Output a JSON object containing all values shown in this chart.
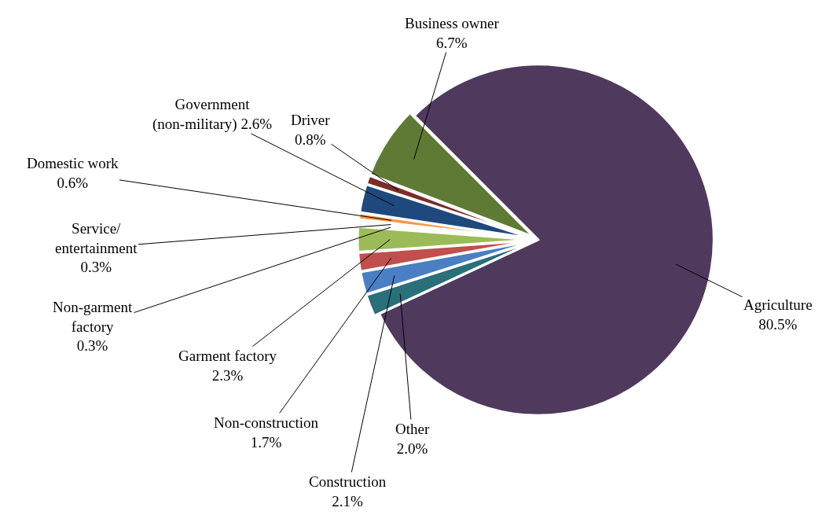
{
  "chart_data": {
    "type": "pie",
    "categories": [
      "Agriculture",
      "Other",
      "Construction",
      "Non-construction",
      "Garment factory",
      "Non-garment factory",
      "Service/ entertainment",
      "Domestic work",
      "Government (non-military)",
      "Driver",
      "Business owner"
    ],
    "values": [
      80.5,
      2.0,
      2.1,
      1.7,
      2.3,
      0.3,
      0.3,
      0.6,
      2.6,
      0.8,
      6.7
    ],
    "colors": [
      "#4f3a5e",
      "#2a6f7a",
      "#4a7fc4",
      "#c0504d",
      "#9bbb59",
      "#dde6ee",
      "#eeeeee",
      "#f79646",
      "#1f497d",
      "#7b2c2c",
      "#5f7a35"
    ],
    "value_labels": [
      "80.5%",
      "2.0%",
      "2.1%",
      "1.7%",
      "2.3%",
      "0.3%",
      "0.3%",
      "0.6%",
      "2.6%",
      "0.8%",
      "6.7%"
    ],
    "legend": false
  }
}
